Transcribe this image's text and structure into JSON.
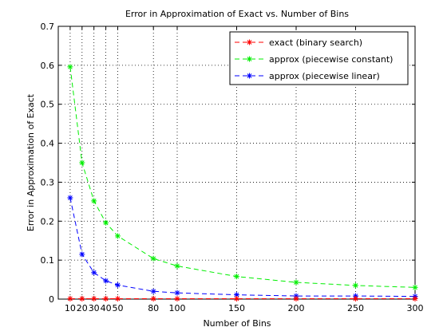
{
  "chart_data": {
    "type": "line",
    "title": "Error in Approximation of Exact vs. Number of Bins",
    "xlabel": "Number of Bins",
    "ylabel": "Error in Approximation of Exact",
    "xlim": [
      0,
      300
    ],
    "ylim": [
      0,
      0.7
    ],
    "grid": true,
    "grid_style": "dotted",
    "legend_position": "top-right",
    "x_ticks": [
      10,
      20,
      30,
      40,
      50,
      80,
      100,
      150,
      200,
      250,
      300
    ],
    "x_tick_labels": [
      "10",
      "20",
      "30",
      "40",
      "50",
      "80",
      "100",
      "150",
      "200",
      "250",
      "300"
    ],
    "y_ticks": [
      0,
      0.1,
      0.2,
      0.3,
      0.4,
      0.5,
      0.6,
      0.7
    ],
    "y_tick_labels": [
      "0",
      "0.1",
      "0.2",
      "0.3",
      "0.4",
      "0.5",
      "0.6",
      "0.7"
    ],
    "x": [
      10,
      20,
      30,
      40,
      50,
      80,
      100,
      150,
      200,
      250,
      300
    ],
    "series": [
      {
        "name": "exact (binary search)",
        "color": "#ff0000",
        "values": [
          0.001,
          0.001,
          0.001,
          0.001,
          0.001,
          0.001,
          0.001,
          0.001,
          0.001,
          0.001,
          0.001
        ]
      },
      {
        "name": "approx (piecewise constant)",
        "color": "#00ee00",
        "values": [
          0.596,
          0.35,
          0.252,
          0.196,
          0.162,
          0.104,
          0.085,
          0.058,
          0.043,
          0.035,
          0.03
        ]
      },
      {
        "name": "approx (piecewise linear)",
        "color": "#0000ff",
        "values": [
          0.26,
          0.115,
          0.068,
          0.047,
          0.036,
          0.02,
          0.016,
          0.011,
          0.008,
          0.008,
          0.007
        ]
      }
    ]
  }
}
